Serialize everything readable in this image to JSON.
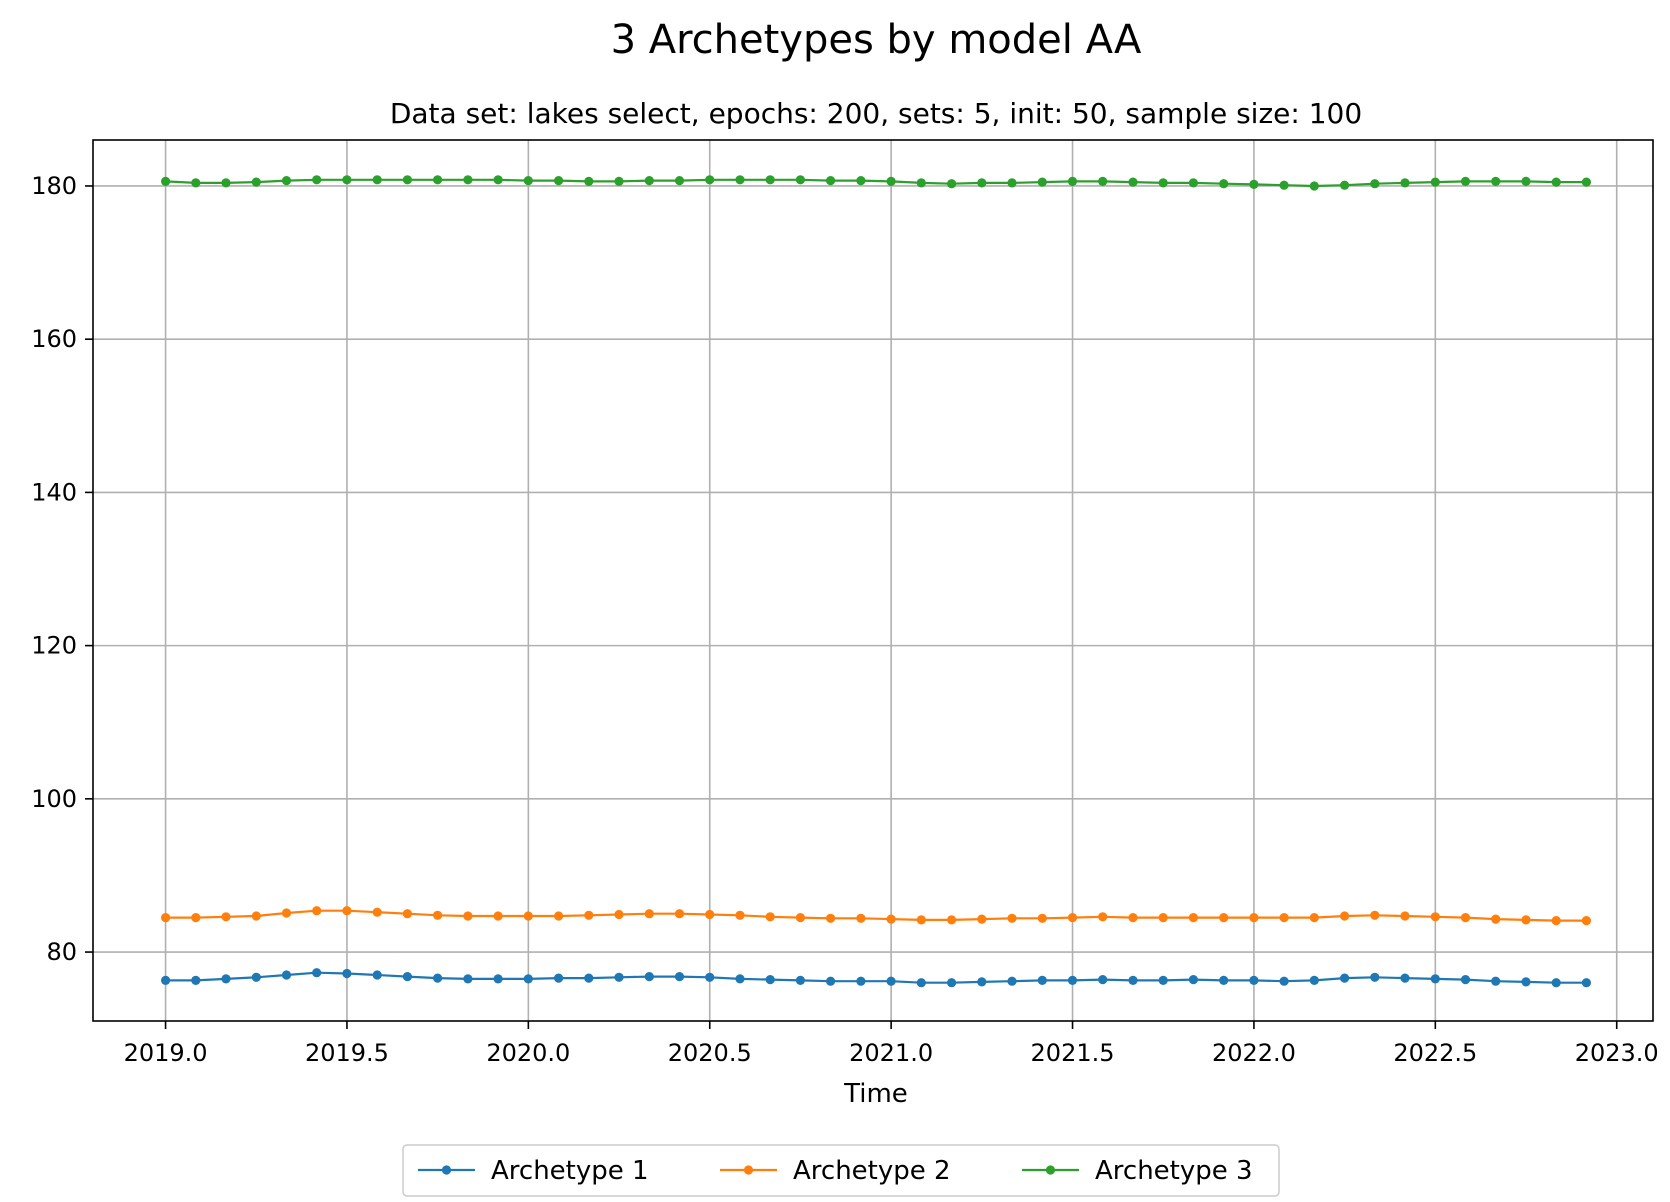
{
  "chart_data": {
    "type": "line",
    "title": "3 Archetypes by model AA",
    "subtitle": "Data set: lakes select, epochs: 200, sets: 5, init: 50, sample size: 100",
    "xlabel": "Time",
    "ylabel": "",
    "xlim": [
      2018.8,
      2023.1
    ],
    "ylim": [
      71,
      186
    ],
    "xticks": [
      2019.0,
      2019.5,
      2020.0,
      2020.5,
      2021.0,
      2021.5,
      2022.0,
      2022.5,
      2023.0
    ],
    "xtick_labels": [
      "2019.0",
      "2019.5",
      "2020.0",
      "2020.5",
      "2021.0",
      "2021.5",
      "2022.0",
      "2022.5",
      "2023.0"
    ],
    "yticks": [
      80,
      100,
      120,
      140,
      160,
      180
    ],
    "ytick_labels": [
      "80",
      "100",
      "120",
      "140",
      "160",
      "180"
    ],
    "grid": true,
    "legend_position": "bottom-center-outside",
    "x_start": 2019.0,
    "x_step": 0.08333,
    "series": [
      {
        "name": "Archetype 1",
        "color": "#1f77b4",
        "values": [
          76.3,
          76.3,
          76.5,
          76.7,
          77.0,
          77.3,
          77.2,
          77.0,
          76.8,
          76.6,
          76.5,
          76.5,
          76.5,
          76.6,
          76.6,
          76.7,
          76.8,
          76.8,
          76.7,
          76.5,
          76.4,
          76.3,
          76.2,
          76.2,
          76.2,
          76.0,
          76.0,
          76.1,
          76.2,
          76.3,
          76.3,
          76.4,
          76.3,
          76.3,
          76.4,
          76.3,
          76.3,
          76.2,
          76.3,
          76.6,
          76.7,
          76.6,
          76.5,
          76.4,
          76.2,
          76.1,
          76.0,
          76.0
        ]
      },
      {
        "name": "Archetype 2",
        "color": "#ff7f0e",
        "values": [
          84.5,
          84.5,
          84.6,
          84.7,
          85.1,
          85.4,
          85.4,
          85.2,
          85.0,
          84.8,
          84.7,
          84.7,
          84.7,
          84.7,
          84.8,
          84.9,
          85.0,
          85.0,
          84.9,
          84.8,
          84.6,
          84.5,
          84.4,
          84.4,
          84.3,
          84.2,
          84.2,
          84.3,
          84.4,
          84.4,
          84.5,
          84.6,
          84.5,
          84.5,
          84.5,
          84.5,
          84.5,
          84.5,
          84.5,
          84.7,
          84.8,
          84.7,
          84.6,
          84.5,
          84.3,
          84.2,
          84.1,
          84.1
        ]
      },
      {
        "name": "Archetype 3",
        "color": "#2ca02c",
        "values": [
          180.6,
          180.4,
          180.4,
          180.5,
          180.7,
          180.8,
          180.8,
          180.8,
          180.8,
          180.8,
          180.8,
          180.8,
          180.7,
          180.7,
          180.6,
          180.6,
          180.7,
          180.7,
          180.8,
          180.8,
          180.8,
          180.8,
          180.7,
          180.7,
          180.6,
          180.4,
          180.3,
          180.4,
          180.4,
          180.5,
          180.6,
          180.6,
          180.5,
          180.4,
          180.4,
          180.3,
          180.2,
          180.1,
          180.0,
          180.1,
          180.3,
          180.4,
          180.5,
          180.6,
          180.6,
          180.6,
          180.5,
          180.5
        ]
      }
    ]
  }
}
